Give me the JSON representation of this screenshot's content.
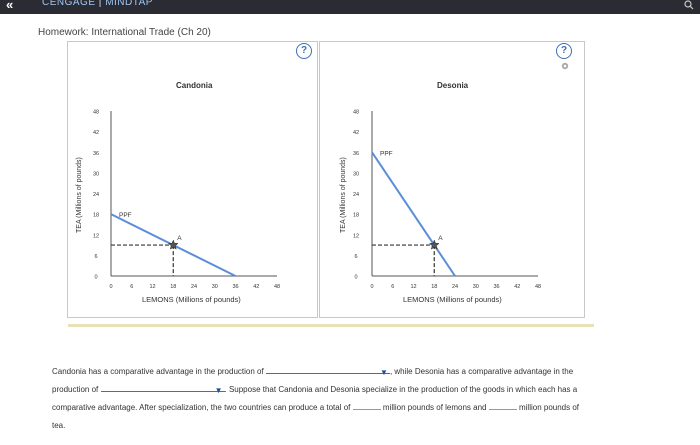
{
  "app": {
    "brand": "CENGAGE",
    "product": "MINDTAP",
    "separator": "|"
  },
  "homework": {
    "title": "Homework: International Trade (Ch 20)"
  },
  "help_label": "?",
  "charts": [
    {
      "chart_data": {
        "type": "line",
        "title": "Candonia",
        "xlabel": "LEMONS (Millions of pounds)",
        "ylabel": "TEA (Millions of pounds)",
        "xticks": [
          0,
          6,
          12,
          18,
          24,
          30,
          36,
          42,
          48
        ],
        "yticks": [
          0,
          6,
          12,
          18,
          24,
          30,
          36,
          42,
          48
        ],
        "xlim": [
          0,
          48
        ],
        "ylim": [
          0,
          48
        ],
        "series": [
          {
            "name": "PPF",
            "points": [
              [
                0,
                18
              ],
              [
                36,
                0
              ]
            ]
          }
        ],
        "point_A": {
          "label": "A",
          "x": 18,
          "y": 9
        },
        "color": "#5b8ed8"
      }
    },
    {
      "chart_data": {
        "type": "line",
        "title": "Desonia",
        "xlabel": "LEMONS (Millions of pounds)",
        "ylabel": "TEA (Millions of pounds)",
        "xticks": [
          0,
          6,
          12,
          18,
          24,
          30,
          36,
          42,
          48
        ],
        "yticks": [
          0,
          6,
          12,
          18,
          24,
          30,
          36,
          42,
          48
        ],
        "xlim": [
          0,
          48
        ],
        "ylim": [
          0,
          48
        ],
        "series": [
          {
            "name": "PPF",
            "points": [
              [
                0,
                36
              ],
              [
                24,
                0
              ]
            ]
          }
        ],
        "point_A": {
          "label": "A",
          "x": 18,
          "y": 9
        },
        "color": "#5b8ed8"
      }
    }
  ],
  "question": {
    "part1": "Candonia has a comparative advantage in the production of",
    "part2": ", while Desonia has a comparative advantage in the",
    "part3": "production of",
    "part4": ". Suppose that Candonia and Desonia specialize in the production of the goods in which each has a",
    "part5": "comparative advantage. After specialization, the two countries can produce a total of",
    "part6": "million pounds of lemons and",
    "part7": "million pounds of",
    "part8": "tea."
  },
  "colors": {
    "accent": "#3d6fb3",
    "ppf": "#5b8ed8",
    "topbar": "#2b2b33"
  }
}
